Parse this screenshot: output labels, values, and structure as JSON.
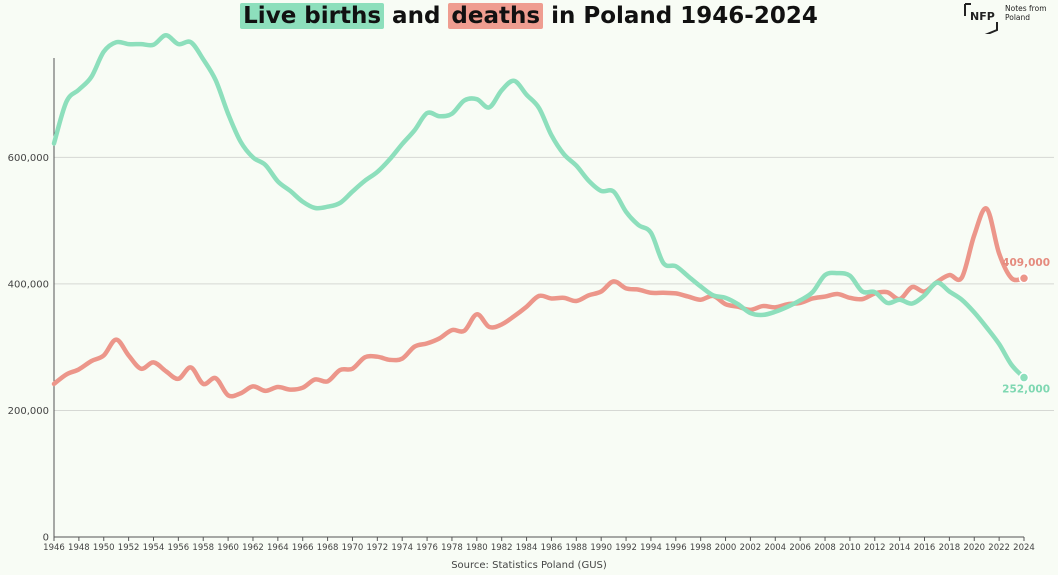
{
  "title": {
    "part1": "Live births",
    "part2": " and ",
    "part3": "deaths",
    "part4": " in Poland 1946-2024"
  },
  "logo": {
    "mark": "NFP",
    "line1": "Notes from",
    "line2": "Poland"
  },
  "source": "Source: Statistics Poland (GUS)",
  "colors": {
    "births": "#8ddfbc",
    "deaths": "#ec968a",
    "births_label": "#7fd8b2",
    "deaths_label": "#e58b7e",
    "grid": "#d6d8d4",
    "axis": "#555555",
    "background": "#f8fcf5"
  },
  "chart_data": {
    "type": "line",
    "title": "Live births and deaths in Poland 1946-2024",
    "x": [
      1946,
      1947,
      1948,
      1949,
      1950,
      1951,
      1952,
      1953,
      1954,
      1955,
      1956,
      1957,
      1958,
      1959,
      1960,
      1961,
      1962,
      1963,
      1964,
      1965,
      1966,
      1967,
      1968,
      1969,
      1970,
      1971,
      1972,
      1973,
      1974,
      1975,
      1976,
      1977,
      1978,
      1979,
      1980,
      1981,
      1982,
      1983,
      1984,
      1985,
      1986,
      1987,
      1988,
      1989,
      1990,
      1991,
      1992,
      1993,
      1994,
      1995,
      1996,
      1997,
      1998,
      1999,
      2000,
      2001,
      2002,
      2003,
      2004,
      2005,
      2006,
      2007,
      2008,
      2009,
      2010,
      2011,
      2012,
      2013,
      2014,
      2015,
      2016,
      2017,
      2018,
      2019,
      2020,
      2021,
      2022,
      2023,
      2024
    ],
    "x_tick_labels": [
      "1946",
      "1948",
      "1950",
      "1952",
      "1954",
      "1956",
      "1958",
      "1960",
      "1962",
      "1964",
      "1966",
      "1968",
      "1970",
      "1972",
      "1974",
      "1976",
      "1978",
      "1980",
      "1982",
      "1984",
      "1986",
      "1988",
      "1990",
      "1992",
      "1994",
      "1996",
      "1998",
      "2000",
      "2002",
      "2004",
      "2006",
      "2008",
      "2010",
      "2012",
      "2014",
      "2016",
      "2018",
      "2020",
      "2022",
      "2024"
    ],
    "y_tick_labels": [
      "0",
      "200,000",
      "400,000",
      "600,000"
    ],
    "y_ticks": [
      0,
      200000,
      400000,
      600000
    ],
    "ylim": [
      0,
      795000
    ],
    "grid": "horizontal",
    "legend": "title",
    "series": [
      {
        "name": "Live births",
        "key": "births",
        "values": [
          622000,
          688000,
          707000,
          727000,
          767000,
          782000,
          779000,
          779000,
          778000,
          793000,
          779000,
          782000,
          755000,
          722000,
          669000,
          625000,
          600000,
          588000,
          562000,
          547000,
          530000,
          520000,
          522000,
          528000,
          546000,
          563000,
          577000,
          597000,
          621000,
          643000,
          670000,
          665000,
          669000,
          690000,
          692000,
          679000,
          706000,
          721000,
          699000,
          678000,
          635000,
          605000,
          587000,
          563000,
          547000,
          546000,
          514000,
          493000,
          481000,
          433000,
          428000,
          412000,
          396000,
          382000,
          378000,
          368000,
          354000,
          351000,
          356000,
          364000,
          374000,
          387000,
          414000,
          417000,
          413000,
          388000,
          387000,
          370000,
          375000,
          369000,
          382000,
          402000,
          388000,
          375000,
          355000,
          331000,
          305000,
          272000,
          252000
        ],
        "end_label": "252,000"
      },
      {
        "name": "Deaths",
        "key": "deaths",
        "values": [
          242000,
          257000,
          265000,
          278000,
          287000,
          312000,
          287000,
          266000,
          276000,
          262000,
          250000,
          268000,
          242000,
          251000,
          224000,
          227000,
          238000,
          231000,
          237000,
          233000,
          236000,
          249000,
          246000,
          264000,
          266000,
          284000,
          285000,
          280000,
          282000,
          301000,
          306000,
          314000,
          327000,
          326000,
          352000,
          332000,
          336000,
          349000,
          364000,
          381000,
          377000,
          378000,
          373000,
          382000,
          388000,
          404000,
          393000,
          391000,
          386000,
          386000,
          385000,
          380000,
          375000,
          381000,
          368000,
          364000,
          359000,
          365000,
          363000,
          368000,
          370000,
          377000,
          380000,
          384000,
          378000,
          376000,
          385000,
          387000,
          376000,
          395000,
          388000,
          403000,
          414000,
          410000,
          477000,
          519000,
          448000,
          409000,
          409000
        ],
        "end_label": "409,000"
      }
    ]
  }
}
